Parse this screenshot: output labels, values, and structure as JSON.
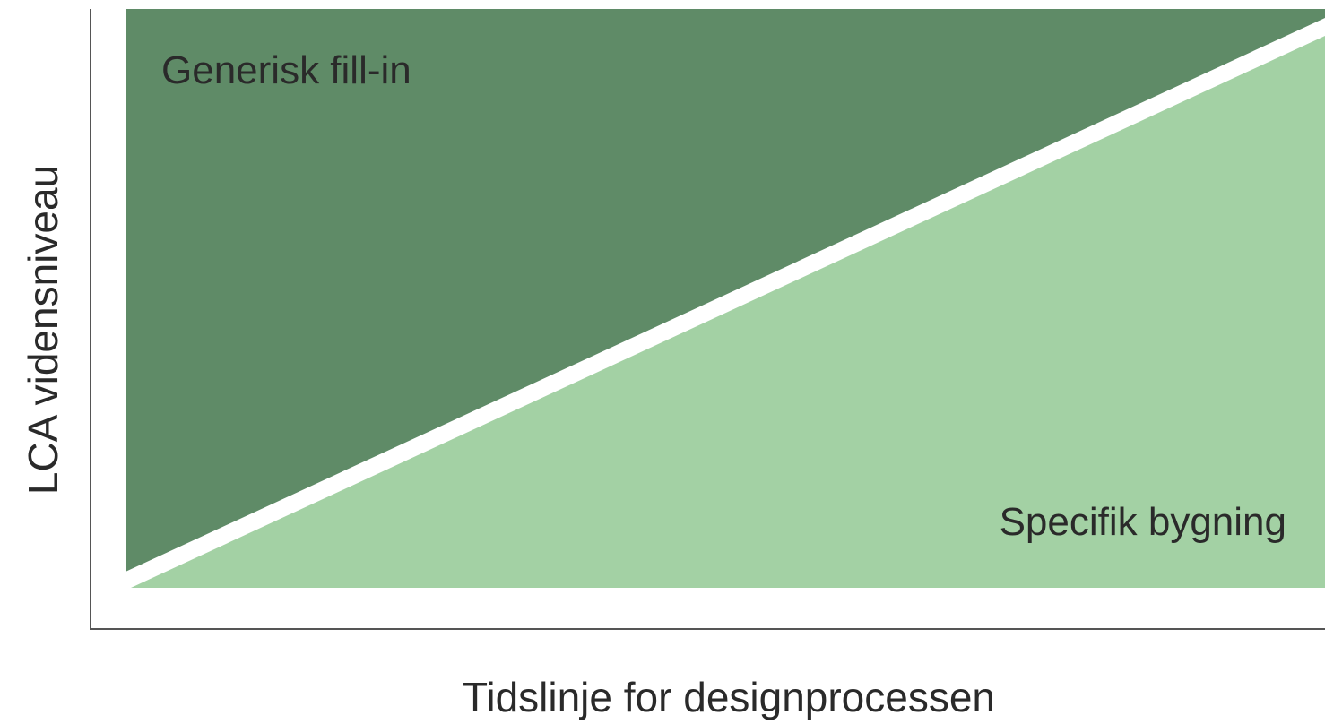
{
  "diagram": {
    "regions": {
      "upper": {
        "label": "Generisk fill-in",
        "color": "#5f8b67"
      },
      "lower": {
        "label": "Specifik bygning",
        "color": "#a3d1a4"
      }
    },
    "divider_color": "#ffffff",
    "axis_color": "#555555",
    "y_axis_label": "LCA vidensniveau",
    "x_axis_label": "Tidslinje for designprocessen"
  }
}
